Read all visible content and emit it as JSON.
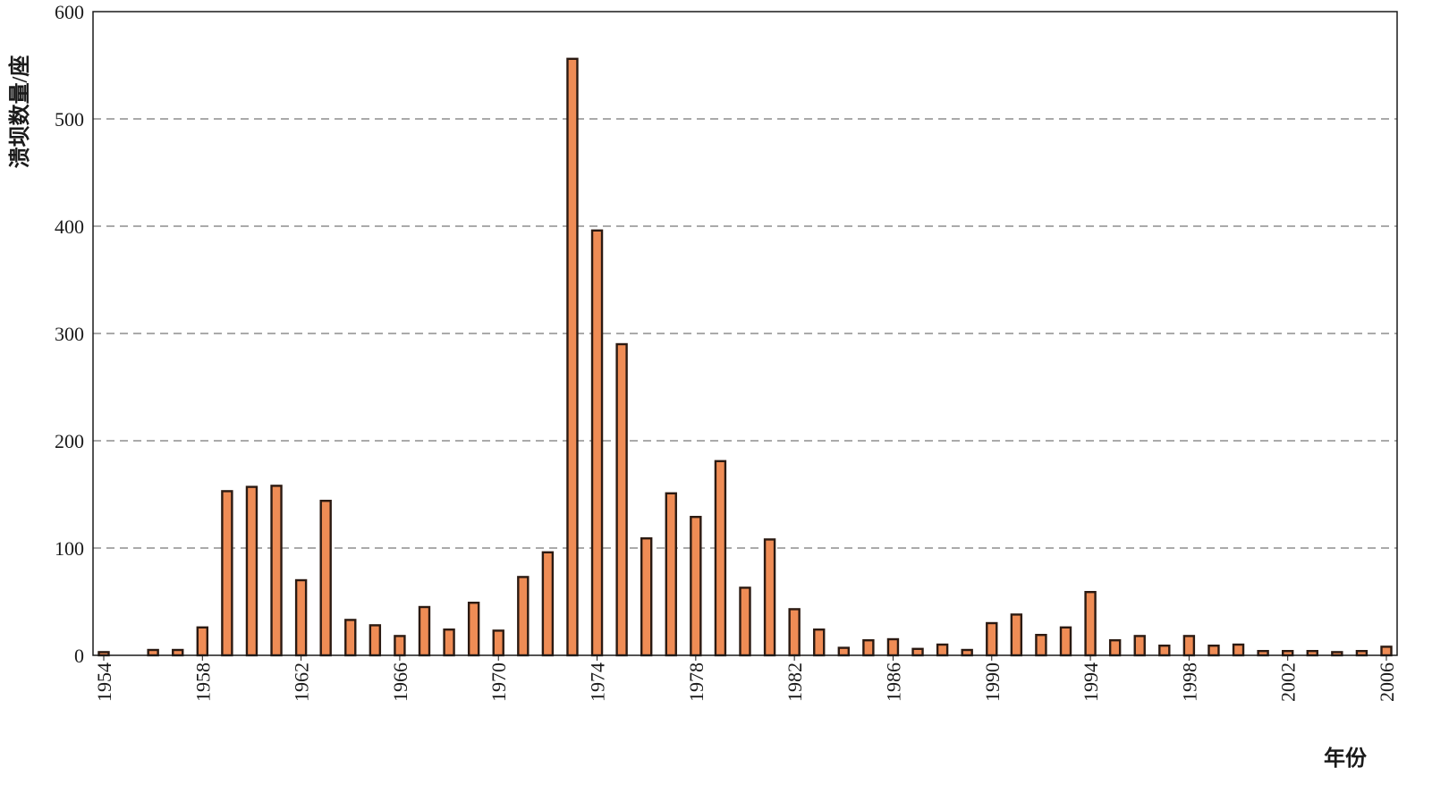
{
  "chart_data": {
    "type": "bar",
    "title": "",
    "xlabel": "年份",
    "ylabel": "溃坝数量/座",
    "ylim": [
      0,
      600
    ],
    "yticks": [
      0,
      100,
      200,
      300,
      400,
      500,
      600
    ],
    "grid": "horizontal dashed",
    "bar_color": "#ef8c55",
    "bar_edge_color": "#2b1a12",
    "x_tick_labels": [
      "1954",
      "1958",
      "1962",
      "1966",
      "1970",
      "1974",
      "1978",
      "1982",
      "1986",
      "1990",
      "1994",
      "1998",
      "2002",
      "2006"
    ],
    "categories": [
      1954,
      1955,
      1956,
      1957,
      1958,
      1959,
      1960,
      1961,
      1962,
      1963,
      1964,
      1965,
      1966,
      1967,
      1968,
      1969,
      1970,
      1971,
      1972,
      1973,
      1974,
      1975,
      1976,
      1977,
      1978,
      1979,
      1980,
      1981,
      1982,
      1983,
      1984,
      1985,
      1986,
      1987,
      1988,
      1989,
      1990,
      1991,
      1992,
      1993,
      1994,
      1995,
      1996,
      1997,
      1998,
      1999,
      2000,
      2001,
      2002,
      2003,
      2004,
      2005,
      2006
    ],
    "values": [
      3,
      0,
      5,
      5,
      26,
      153,
      157,
      158,
      70,
      144,
      33,
      28,
      18,
      45,
      24,
      49,
      23,
      73,
      96,
      556,
      396,
      290,
      109,
      151,
      129,
      181,
      63,
      108,
      43,
      24,
      7,
      14,
      15,
      6,
      10,
      5,
      30,
      38,
      19,
      26,
      59,
      14,
      18,
      9,
      18,
      9,
      10,
      4,
      4,
      4,
      3,
      4,
      8
    ]
  }
}
